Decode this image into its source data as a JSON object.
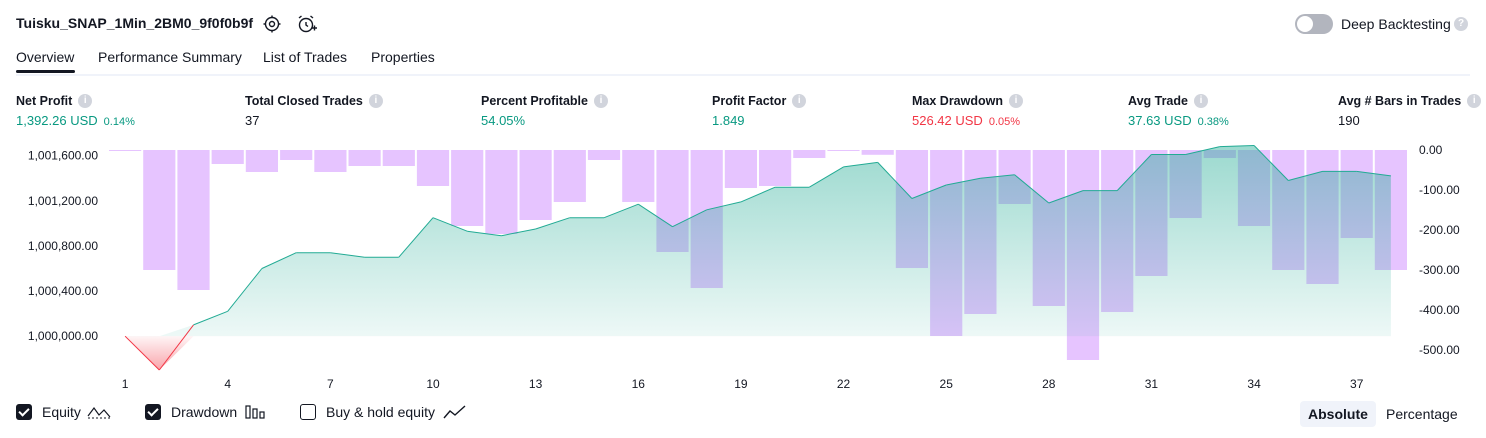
{
  "header": {
    "title": "Tuisku_SNAP_1Min_2BM0_9f0f0b9f",
    "deep_backtesting_label": "Deep Backtesting",
    "deep_backtesting_on": false
  },
  "tabs": [
    {
      "label": "Overview",
      "active": true
    },
    {
      "label": "Performance Summary",
      "active": false
    },
    {
      "label": "List of Trades",
      "active": false
    },
    {
      "label": "Properties",
      "active": false
    }
  ],
  "metrics": {
    "net_profit": {
      "label": "Net Profit",
      "value": "1,392.26 USD",
      "pct": "0.14%"
    },
    "total_closed_trades": {
      "label": "Total Closed Trades",
      "value": "37"
    },
    "percent_profitable": {
      "label": "Percent Profitable",
      "value": "54.05%"
    },
    "profit_factor": {
      "label": "Profit Factor",
      "value": "1.849"
    },
    "max_drawdown": {
      "label": "Max Drawdown",
      "value": "526.42 USD",
      "pct": "0.05%"
    },
    "avg_trade": {
      "label": "Avg Trade",
      "value": "37.63 USD",
      "pct": "0.38%"
    },
    "avg_bars": {
      "label": "Avg # Bars in Trades",
      "value": "190"
    }
  },
  "chart_data": {
    "type": "line+bar",
    "x_ticks": [
      "1",
      "4",
      "7",
      "10",
      "13",
      "16",
      "19",
      "22",
      "25",
      "28",
      "31",
      "34",
      "37"
    ],
    "left_axis_ticks": [
      "1,001,600.00",
      "1,001,200.00",
      "1,000,800.00",
      "1,000,400.00",
      "1,000,000.00"
    ],
    "right_axis_ticks": [
      "0.00",
      "-100.00",
      "-200.00",
      "-300.00",
      "-400.00",
      "-500.00"
    ],
    "left_ylim": [
      999700,
      1001650
    ],
    "right_ylim": [
      -520,
      0
    ],
    "series": [
      {
        "name": "Equity",
        "color": "#22ab94",
        "x": [
          1,
          2,
          3,
          4,
          5,
          6,
          7,
          8,
          9,
          10,
          11,
          12,
          13,
          14,
          15,
          16,
          17,
          18,
          19,
          20,
          21,
          22,
          23,
          24,
          25,
          26,
          27,
          28,
          29,
          30,
          31,
          32,
          33,
          34,
          35,
          36,
          37,
          38
        ],
        "values": [
          1000000,
          999700,
          1000100,
          1000220,
          1000600,
          1000740,
          1000740,
          1000700,
          1000700,
          1001050,
          1000930,
          1000890,
          1000950,
          1001050,
          1001050,
          1001170,
          1000970,
          1001120,
          1001190,
          1001320,
          1001320,
          1001500,
          1001540,
          1001220,
          1001340,
          1001400,
          1001430,
          1001180,
          1001290,
          1001290,
          1001610,
          1001610,
          1001680,
          1001690,
          1001380,
          1001460,
          1001460,
          1001420
        ]
      },
      {
        "name": "Drawdown",
        "color": "#c77dff",
        "x": [
          1,
          2,
          3,
          4,
          5,
          6,
          7,
          8,
          9,
          10,
          11,
          12,
          13,
          14,
          15,
          16,
          17,
          18,
          19,
          20,
          21,
          22,
          23,
          24,
          25,
          26,
          27,
          28,
          29,
          30,
          31,
          32,
          33,
          34,
          35,
          36,
          37,
          38
        ],
        "values": [
          -1,
          -300,
          -350,
          -35,
          -55,
          -25,
          -55,
          -40,
          -40,
          -90,
          -190,
          -210,
          -175,
          -130,
          -25,
          -130,
          -255,
          -345,
          -95,
          -90,
          -20,
          -1,
          -12,
          -295,
          -465,
          -410,
          -135,
          -390,
          -525,
          -405,
          -315,
          -170,
          -20,
          -190,
          -300,
          -335,
          -220,
          -300
        ]
      }
    ],
    "legend": [
      {
        "label": "Equity",
        "checked": true
      },
      {
        "label": "Drawdown",
        "checked": true
      },
      {
        "label": "Buy & hold equity",
        "checked": false
      }
    ]
  },
  "modes": {
    "absolute": "Absolute",
    "percentage": "Percentage",
    "active": "absolute"
  }
}
